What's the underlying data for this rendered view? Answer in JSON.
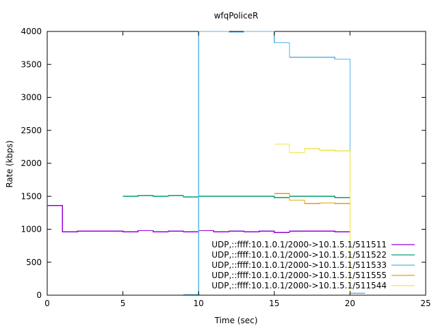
{
  "chart_data": {
    "type": "line",
    "step": true,
    "title": "wfqPoliceR",
    "xlabel": "Time (sec)",
    "ylabel": "Rate (kbps)",
    "xlim": [
      0,
      25
    ],
    "ylim": [
      0,
      4000
    ],
    "xticks": [
      "0",
      "5",
      "10",
      "15",
      "20",
      "25"
    ],
    "yticks": [
      "0",
      "500",
      "1000",
      "1500",
      "2000",
      "2500",
      "3000",
      "3500",
      "4000"
    ],
    "grid": false,
    "legend_position": "bottom-right",
    "series": [
      {
        "name": "UDP,::ffff:10.1.0.1/2000->10.1.5.1/511511",
        "color": "#9400d3",
        "x": [
          0,
          1,
          2,
          3,
          4,
          5,
          6,
          7,
          8,
          9,
          10,
          11,
          12,
          13,
          14,
          15,
          16,
          17,
          18,
          19,
          20
        ],
        "y": [
          1360,
          960,
          970,
          970,
          970,
          960,
          980,
          960,
          970,
          960,
          980,
          960,
          970,
          960,
          970,
          950,
          970,
          970,
          970,
          960,
          0
        ]
      },
      {
        "name": "UDP,::ffff:10.1.0.1/2000->10.1.5.1/511522",
        "color": "#009e73",
        "x": [
          5,
          6,
          7,
          8,
          9,
          10,
          11,
          12,
          13,
          14,
          15,
          16,
          17,
          18,
          19,
          20
        ],
        "y": [
          1500,
          1510,
          1500,
          1510,
          1490,
          1500,
          1500,
          1500,
          1500,
          1500,
          1480,
          1500,
          1500,
          1500,
          1480,
          0
        ]
      },
      {
        "name": "UDP,::ffff:10.1.0.1/2000->10.1.5.1/511533",
        "color": "#56b4e9",
        "x": [
          9,
          10,
          11,
          12,
          13,
          14,
          15,
          16,
          17,
          18,
          19,
          20,
          21
        ],
        "y": [
          10,
          4000,
          4000,
          3990,
          4000,
          4000,
          3830,
          3610,
          3610,
          3610,
          3580,
          30,
          30
        ]
      },
      {
        "name": "UDP,::ffff:10.1.0.1/2000->10.1.5.1/511555",
        "color": "#e69f00",
        "x": [
          15,
          16,
          17,
          18,
          19,
          20
        ],
        "y": [
          1540,
          1440,
          1390,
          1400,
          1390,
          0
        ]
      },
      {
        "name": "UDP,::ffff:10.1.0.1/2000->10.1.5.1/511544",
        "color": "#f0e442",
        "x": [
          15,
          16,
          17,
          18,
          19,
          20
        ],
        "y": [
          2290,
          2160,
          2220,
          2200,
          2190,
          0
        ]
      }
    ]
  }
}
